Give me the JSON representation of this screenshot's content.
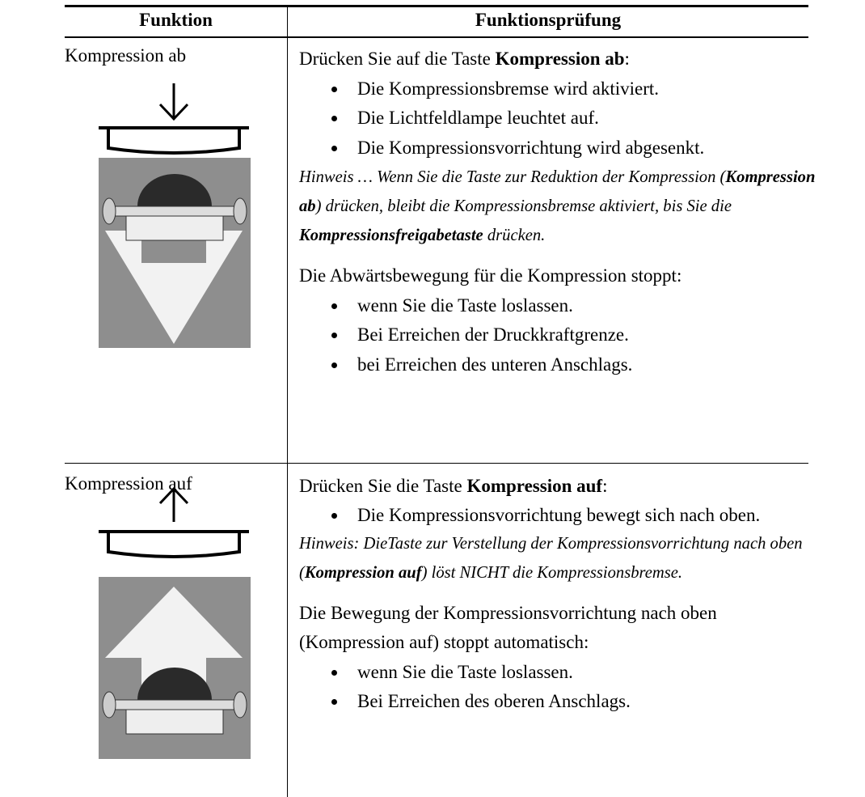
{
  "header": {
    "col1": "Funktion",
    "col2": "Funktionsprüfung"
  },
  "rows": [
    {
      "function": "Kompression ab",
      "intro": [
        "Drücken Sie auf die Taste ",
        "Kompression ab",
        ":"
      ],
      "bullets": [
        "Die Kompressionsbremse wird aktiviert.",
        "Die Lichtfeldlampe leuchtet auf.",
        "Die Kompressionsvorrichtung wird abgesenkt."
      ],
      "note": [
        "Hinweis … Wenn Sie die Taste zur Reduktion der Kompression (",
        "Kompression ab",
        ") drücken, bleibt die Kompressionsbremse aktiviert, bis Sie die ",
        "Kompressionsfreigabetaste",
        " drücken."
      ],
      "paragraph": "Die Abwärtsbewegung für die Kompression stoppt:",
      "bullets2": [
        "wenn Sie die Taste loslassen.",
        "Bei Erreichen der Druckkraftgrenze.",
        "bei Erreichen des unteren Anschlags."
      ]
    },
    {
      "function": "Kompression auf",
      "intro": [
        "Drücken Sie die Taste ",
        "Kompression auf",
        ":"
      ],
      "bullets": [
        "Die Kompressionsvorrichtung bewegt sich nach oben."
      ],
      "note": [
        "Hinweis: DieTaste zur Verstellung der Kompressionsvorrichtung nach oben (",
        "Kompression auf",
        ") löst NICHT die Kompressionsbremse."
      ],
      "paragraph": "Die Bewegung der Kompressionsvorrichtung nach oben (Kompression auf) stoppt automatisch:",
      "bullets2": [
        "wenn Sie die Taste loslassen.",
        "Bei Erreichen des oberen Anschlags."
      ]
    }
  ]
}
